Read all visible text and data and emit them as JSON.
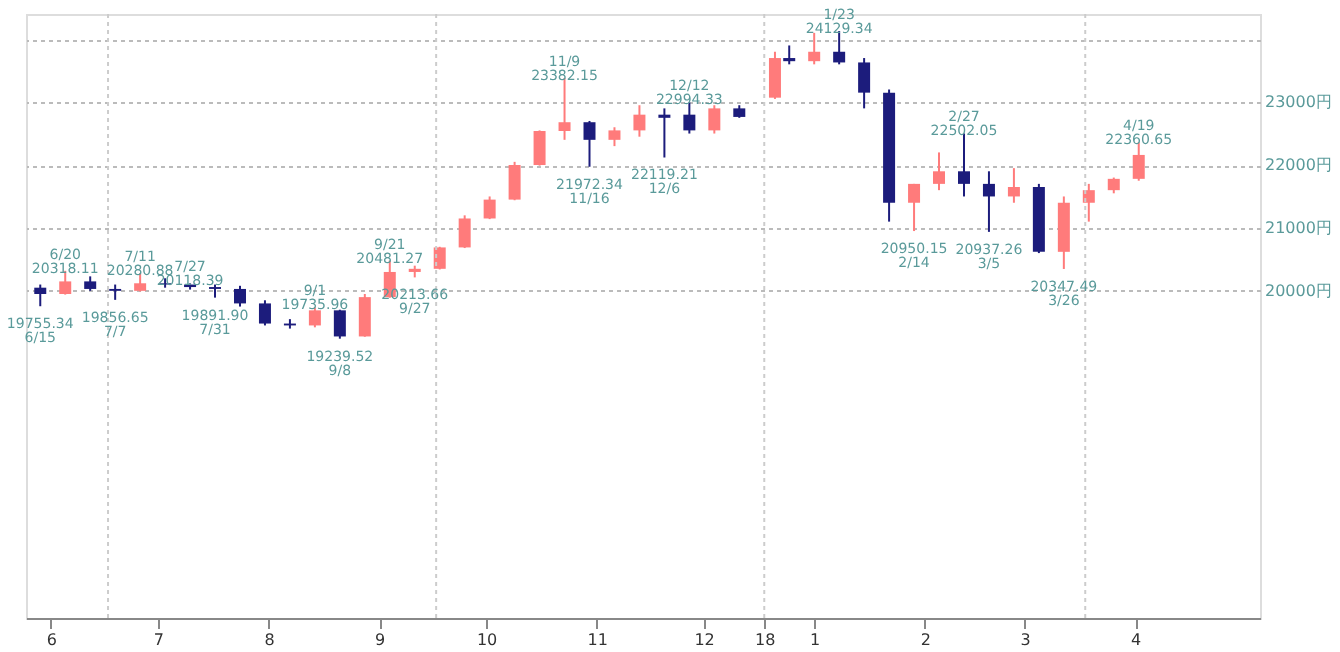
{
  "chart_data": {
    "type": "candlestick",
    "x": [
      "2017-06-12",
      "2017-06-19",
      "2017-06-26",
      "2017-07-03",
      "2017-07-10",
      "2017-07-17",
      "2017-07-24",
      "2017-07-31",
      "2017-08-07",
      "2017-08-14",
      "2017-08-21",
      "2017-08-28",
      "2017-09-04",
      "2017-09-11",
      "2017-09-18",
      "2017-09-25",
      "2017-10-02",
      "2017-10-09",
      "2017-10-16",
      "2017-10-23",
      "2017-10-30",
      "2017-11-06",
      "2017-11-13",
      "2017-11-20",
      "2017-11-27",
      "2017-12-04",
      "2017-12-11",
      "2017-12-18",
      "2017-12-25",
      "2018-01-04",
      "2018-01-08",
      "2018-01-15",
      "2018-01-22",
      "2018-01-29",
      "2018-02-05",
      "2018-02-12",
      "2018-02-19",
      "2018-02-26",
      "2018-03-05",
      "2018-03-12",
      "2018-03-19",
      "2018-03-26",
      "2018-04-02",
      "2018-04-09",
      "2018-04-16"
    ],
    "ohlc": [
      [
        20050,
        20100,
        19755.34,
        19950
      ],
      [
        19950,
        20318.11,
        19940,
        20150
      ],
      [
        20150,
        20230,
        20000,
        20030
      ],
      [
        20030,
        20100,
        19856.65,
        20000
      ],
      [
        20000,
        20280.88,
        19990,
        20120
      ],
      [
        20120,
        20200,
        20050,
        20100
      ],
      [
        20100,
        20118.39,
        20020,
        20060
      ],
      [
        20060,
        20100,
        19891.9,
        20030
      ],
      [
        20030,
        20080,
        19750,
        19800
      ],
      [
        19800,
        19850,
        19450,
        19480
      ],
      [
        19480,
        19550,
        19400,
        19450
      ],
      [
        19450,
        19735.96,
        19420,
        19690
      ],
      [
        19690,
        19700,
        19239.52,
        19275
      ],
      [
        19275,
        19950,
        19270,
        19900
      ],
      [
        19900,
        20481.27,
        19890,
        20300
      ],
      [
        20300,
        20400,
        20213.66,
        20350
      ],
      [
        20350,
        20700,
        20340,
        20690
      ],
      [
        20690,
        21200,
        20680,
        21150
      ],
      [
        21150,
        21500,
        21140,
        21450
      ],
      [
        21450,
        22050,
        21440,
        22000
      ],
      [
        22000,
        22550,
        21990,
        22540
      ],
      [
        22540,
        23382.15,
        22400,
        22680
      ],
      [
        22680,
        22700,
        21972.34,
        22400
      ],
      [
        22400,
        22600,
        22300,
        22550
      ],
      [
        22550,
        22950,
        22450,
        22800
      ],
      [
        22800,
        22900,
        22119.21,
        22750
      ],
      [
        22800,
        22994.33,
        22500,
        22550
      ],
      [
        22550,
        22950,
        22500,
        22900
      ],
      [
        22900,
        22950,
        22750,
        22764
      ],
      [
        23070,
        23800,
        23050,
        23700
      ],
      [
        23700,
        23900,
        23600,
        23650
      ],
      [
        23650,
        24100,
        23600,
        23800
      ],
      [
        23800,
        24129.34,
        23600,
        23630
      ],
      [
        23630,
        23700,
        22900,
        23150
      ],
      [
        23150,
        23200,
        21100,
        21400
      ],
      [
        21400,
        21700,
        20950.15,
        21700
      ],
      [
        21700,
        22200,
        21600,
        21900
      ],
      [
        21900,
        22502.05,
        21500,
        21700
      ],
      [
        21700,
        21900,
        20937.26,
        21500
      ],
      [
        21500,
        21950,
        21400,
        21650
      ],
      [
        21650,
        21700,
        20600,
        20620
      ],
      [
        20620,
        21500,
        20347.49,
        21400
      ],
      [
        21400,
        21700,
        21100,
        21600
      ],
      [
        21600,
        21800,
        21550,
        21780
      ],
      [
        21780,
        22360.65,
        21750,
        22160
      ]
    ],
    "colors": [
      "#1c1c7c",
      "#ff7b7b",
      "#1c1c7c",
      "#1c1c7c",
      "#ff7b7b",
      "#1c1c7c",
      "#1c1c7c",
      "#1c1c7c",
      "#1c1c7c",
      "#1c1c7c",
      "#1c1c7c",
      "#ff7b7b",
      "#1c1c7c",
      "#ff7b7b",
      "#ff7b7b",
      "#ff7b7b",
      "#ff7b7b",
      "#ff7b7b",
      "#ff7b7b",
      "#ff7b7b",
      "#ff7b7b",
      "#ff7b7b",
      "#1c1c7c",
      "#ff7b7b",
      "#ff7b7b",
      "#1c1c7c",
      "#1c1c7c",
      "#ff7b7b",
      "#1c1c7c",
      "#ff7b7b",
      "#1c1c7c",
      "#ff7b7b",
      "#1c1c7c",
      "#1c1c7c",
      "#1c1c7c",
      "#ff7b7b",
      "#ff7b7b",
      "#1c1c7c",
      "#1c1c7c",
      "#ff7b7b",
      "#1c1c7c",
      "#ff7b7b",
      "#ff7b7b",
      "#ff7b7b",
      "#ff7b7b"
    ],
    "xlim": [
      "2017-06-08",
      "2018-05-20"
    ],
    "xticks": [
      {
        "value": "2017-06-15",
        "label": "6"
      },
      {
        "value": "2017-07-15",
        "label": "7"
      },
      {
        "value": "2017-08-15",
        "label": "8"
      },
      {
        "value": "2017-09-15",
        "label": "9"
      },
      {
        "value": "2017-10-15",
        "label": "10"
      },
      {
        "value": "2017-11-15",
        "label": "11"
      },
      {
        "value": "2017-12-15",
        "label": "12"
      },
      {
        "value": "2018-01-01",
        "label": "18"
      },
      {
        "value": "2018-01-15",
        "label": "1"
      },
      {
        "value": "2018-02-15",
        "label": "2"
      },
      {
        "value": "2018-03-15",
        "label": "3"
      },
      {
        "value": "2018-04-15",
        "label": "4"
      }
    ],
    "ylim": [
      14800,
      24400
    ],
    "yticks": [
      {
        "value": 20000,
        "label": "20000円"
      },
      {
        "value": 21000,
        "label": "21000円"
      },
      {
        "value": 22000,
        "label": "22000円"
      },
      {
        "value": 23000,
        "label": "23000円"
      },
      {
        "value": 24000,
        "label": null
      }
    ],
    "grid": "y",
    "ref_lines": [
      {
        "axis": "x",
        "value": "2017-07-01",
        "label": null
      },
      {
        "axis": "x",
        "value": "2017-10-01",
        "label": null
      },
      {
        "axis": "x",
        "value": "2018-01-01",
        "label": null
      },
      {
        "axis": "x",
        "value": "2018-04-01",
        "label": null
      }
    ],
    "annotations": [
      {
        "text": "6/20\n20318.11",
        "x": "2017-06-19",
        "y": 20318.11
      },
      {
        "text": "19755.34\n6/15",
        "x": "2017-06-12",
        "y": 19755.34
      },
      {
        "text": "7/11\n20280.88",
        "x": "2017-07-10",
        "y": 20280.88
      },
      {
        "text": "19856.65\n7/7",
        "x": "2017-07-03",
        "y": 19856.65
      },
      {
        "text": "7/27\n20118.39",
        "x": "2017-07-24",
        "y": 20118.39
      },
      {
        "text": "19891.90\n7/31",
        "x": "2017-07-31",
        "y": 19891.9
      },
      {
        "text": "9/1\n19735.96",
        "x": "2017-08-28",
        "y": 19735.96
      },
      {
        "text": "19239.52\n9/8",
        "x": "2017-09-04",
        "y": 19239.52
      },
      {
        "text": "9/21\n20481.27",
        "x": "2017-09-18",
        "y": 20481.27
      },
      {
        "text": "20213.66\n9/27",
        "x": "2017-09-25",
        "y": 20213.66
      },
      {
        "text": "11/9\n23382.15",
        "x": "2017-11-06",
        "y": 23382.15
      },
      {
        "text": "21972.34\n11/16",
        "x": "2017-11-13",
        "y": 21972.34
      },
      {
        "text": "12/12\n22994.33",
        "x": "2017-12-11",
        "y": 22994.33
      },
      {
        "text": "22119.21\n12/6",
        "x": "2017-12-04",
        "y": 22119.21
      },
      {
        "text": "1/23\n24129.34",
        "x": "2018-01-22",
        "y": 24129.34
      },
      {
        "text": "20950.15\n2/14",
        "x": "2018-02-12",
        "y": 20950.15
      },
      {
        "text": "2/27\n22502.05",
        "x": "2018-02-26",
        "y": 22502.05
      },
      {
        "text": "20937.26\n3/5",
        "x": "2018-03-05",
        "y": 20937.26
      },
      {
        "text": "20347.49\n3/26",
        "x": "2018-03-26",
        "y": 20347.49
      },
      {
        "text": "4/19\n22360.65",
        "x": "2018-04-16",
        "y": 22360.65
      }
    ]
  }
}
